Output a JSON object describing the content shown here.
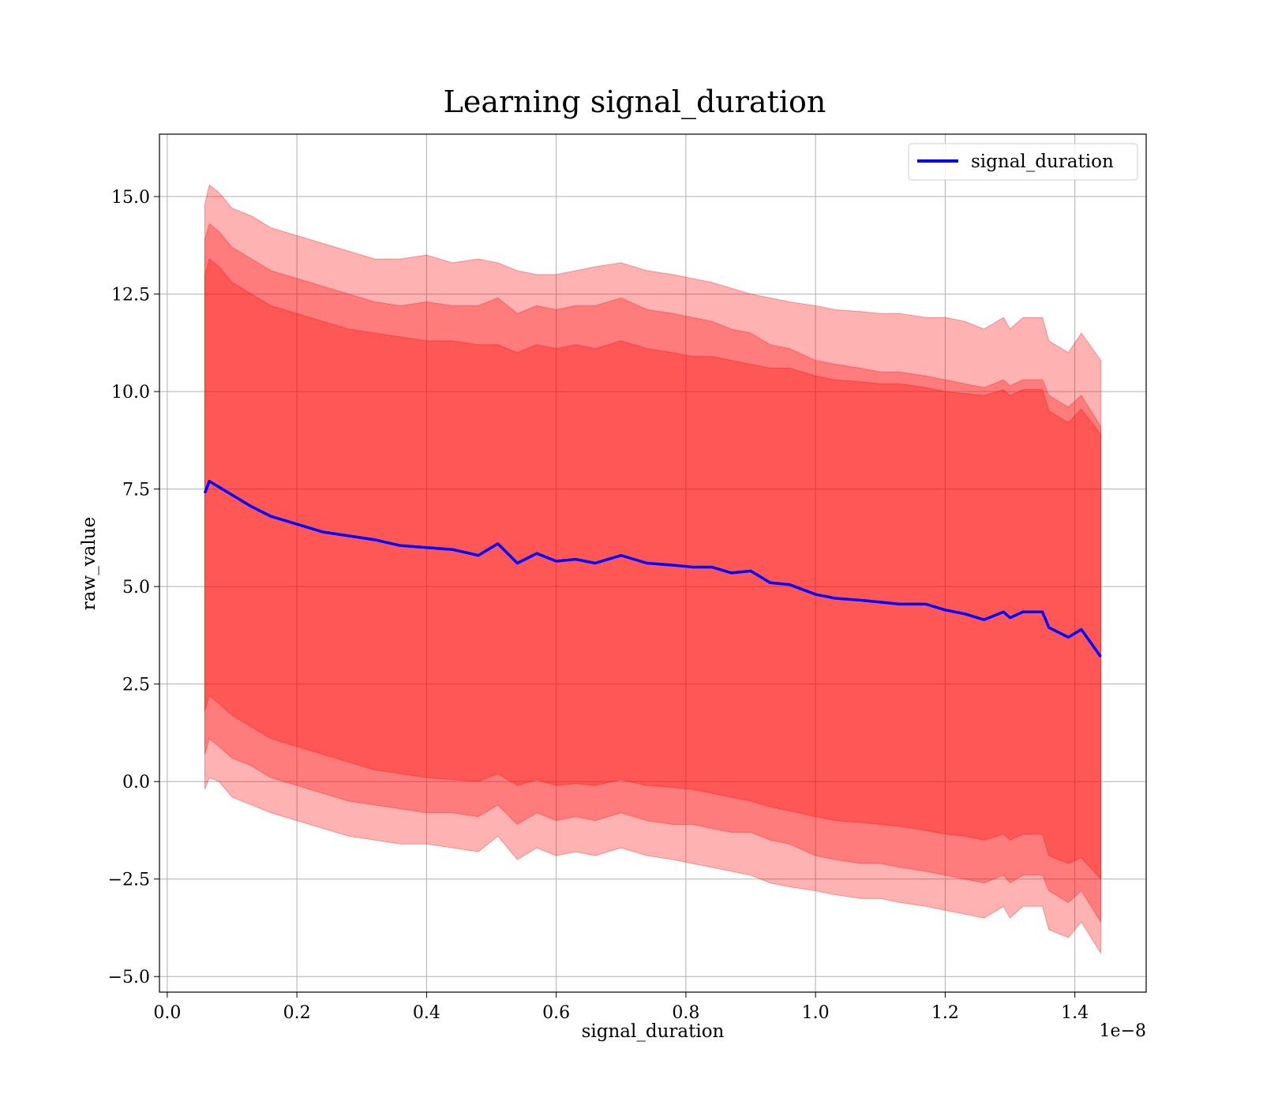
{
  "chart_data": {
    "type": "line",
    "title": "Learning signal_duration",
    "xlabel": "signal_duration",
    "ylabel": "raw_value",
    "x_offset_text": "1e−8",
    "xlim": [
      -0.012,
      1.51
    ],
    "ylim": [
      -5.4,
      16.6
    ],
    "grid": true,
    "legend": {
      "placement": "top-right",
      "entries": [
        "signal_duration"
      ]
    },
    "x_ticks": [
      0.0,
      0.2,
      0.4,
      0.6,
      0.8,
      1.0,
      1.2,
      1.4
    ],
    "x_tick_labels": [
      "0.0",
      "0.2",
      "0.4",
      "0.6",
      "0.8",
      "1.0",
      "1.2",
      "1.4"
    ],
    "y_ticks": [
      -5.0,
      -2.5,
      0.0,
      2.5,
      5.0,
      7.5,
      10.0,
      12.5,
      15.0
    ],
    "y_tick_labels": [
      "−5.0",
      "−2.5",
      "0.0",
      "2.5",
      "5.0",
      "7.5",
      "10.0",
      "12.5",
      "15.0"
    ],
    "colors": {
      "line": "#0000ff",
      "band": "#ff0000"
    },
    "series": [
      {
        "name": "signal_duration",
        "x": [
          0.058,
          0.065,
          0.08,
          0.1,
          0.13,
          0.16,
          0.2,
          0.24,
          0.28,
          0.32,
          0.36,
          0.4,
          0.44,
          0.48,
          0.51,
          0.54,
          0.57,
          0.6,
          0.63,
          0.66,
          0.7,
          0.74,
          0.78,
          0.81,
          0.84,
          0.87,
          0.9,
          0.93,
          0.96,
          1.0,
          1.03,
          1.07,
          1.1,
          1.13,
          1.17,
          1.2,
          1.23,
          1.26,
          1.29,
          1.3,
          1.32,
          1.35,
          1.36,
          1.39,
          1.41,
          1.44
        ],
        "y": [
          7.4,
          7.7,
          7.55,
          7.35,
          7.05,
          6.8,
          6.6,
          6.4,
          6.3,
          6.2,
          6.05,
          6.0,
          5.95,
          5.8,
          6.1,
          5.6,
          5.85,
          5.65,
          5.7,
          5.6,
          5.8,
          5.6,
          5.55,
          5.5,
          5.5,
          5.35,
          5.4,
          5.1,
          5.05,
          4.8,
          4.7,
          4.65,
          4.6,
          4.55,
          4.55,
          4.4,
          4.3,
          4.15,
          4.35,
          4.2,
          4.35,
          4.35,
          3.95,
          3.7,
          3.9,
          3.2
        ],
        "bands": [
          {
            "upper": [
              14.8,
              15.3,
              15.1,
              14.7,
              14.5,
              14.2,
              14.0,
              13.8,
              13.6,
              13.4,
              13.4,
              13.5,
              13.3,
              13.4,
              13.3,
              13.1,
              13.0,
              13.0,
              13.1,
              13.2,
              13.3,
              13.1,
              13.0,
              12.9,
              12.8,
              12.65,
              12.5,
              12.4,
              12.3,
              12.2,
              12.1,
              12.05,
              12.0,
              12.0,
              11.9,
              11.9,
              11.8,
              11.6,
              11.9,
              11.6,
              11.9,
              11.9,
              11.3,
              11.0,
              11.5,
              10.8
            ],
            "lower": [
              -0.2,
              0.1,
              0.0,
              -0.4,
              -0.6,
              -0.8,
              -1.0,
              -1.2,
              -1.4,
              -1.5,
              -1.6,
              -1.6,
              -1.7,
              -1.8,
              -1.4,
              -2.0,
              -1.7,
              -1.9,
              -1.8,
              -1.9,
              -1.7,
              -1.9,
              -2.0,
              -2.1,
              -2.2,
              -2.3,
              -2.4,
              -2.6,
              -2.7,
              -2.8,
              -2.9,
              -3.0,
              -3.0,
              -3.1,
              -3.2,
              -3.3,
              -3.4,
              -3.5,
              -3.2,
              -3.5,
              -3.2,
              -3.2,
              -3.8,
              -4.0,
              -3.6,
              -4.4
            ]
          },
          {
            "upper": [
              13.9,
              14.3,
              14.1,
              13.7,
              13.4,
              13.1,
              12.9,
              12.7,
              12.5,
              12.3,
              12.2,
              12.3,
              12.2,
              12.2,
              12.4,
              12.0,
              12.2,
              12.1,
              12.2,
              12.2,
              12.4,
              12.1,
              12.0,
              11.9,
              11.8,
              11.6,
              11.5,
              11.2,
              11.1,
              10.8,
              10.7,
              10.6,
              10.5,
              10.5,
              10.4,
              10.3,
              10.2,
              10.1,
              10.3,
              10.15,
              10.3,
              10.3,
              9.9,
              9.6,
              9.9,
              9.1
            ],
            "lower": [
              0.7,
              1.1,
              0.9,
              0.6,
              0.4,
              0.1,
              -0.1,
              -0.3,
              -0.5,
              -0.6,
              -0.7,
              -0.8,
              -0.8,
              -0.9,
              -0.6,
              -1.1,
              -0.8,
              -1.0,
              -0.9,
              -1.0,
              -0.8,
              -1.0,
              -1.1,
              -1.1,
              -1.2,
              -1.3,
              -1.3,
              -1.5,
              -1.6,
              -1.9,
              -2.0,
              -2.1,
              -2.1,
              -2.2,
              -2.3,
              -2.4,
              -2.5,
              -2.6,
              -2.4,
              -2.6,
              -2.4,
              -2.4,
              -2.8,
              -3.1,
              -2.8,
              -3.6
            ]
          },
          {
            "upper": [
              13.0,
              13.4,
              13.2,
              12.8,
              12.5,
              12.2,
              12.0,
              11.8,
              11.6,
              11.5,
              11.4,
              11.3,
              11.3,
              11.2,
              11.2,
              11.0,
              11.2,
              11.1,
              11.2,
              11.1,
              11.3,
              11.1,
              11.0,
              10.9,
              10.9,
              10.8,
              10.7,
              10.6,
              10.6,
              10.4,
              10.3,
              10.25,
              10.2,
              10.2,
              10.1,
              10.0,
              9.95,
              9.9,
              10.05,
              9.9,
              10.05,
              10.05,
              9.5,
              9.2,
              9.55,
              8.9
            ],
            "lower": [
              1.8,
              2.2,
              2.0,
              1.7,
              1.4,
              1.1,
              0.9,
              0.7,
              0.5,
              0.3,
              0.2,
              0.1,
              0.05,
              0.0,
              0.2,
              -0.1,
              0.05,
              -0.1,
              -0.05,
              -0.1,
              0.05,
              -0.1,
              -0.15,
              -0.2,
              -0.3,
              -0.4,
              -0.5,
              -0.65,
              -0.75,
              -0.9,
              -1.0,
              -1.05,
              -1.1,
              -1.15,
              -1.25,
              -1.35,
              -1.4,
              -1.5,
              -1.35,
              -1.5,
              -1.35,
              -1.35,
              -1.9,
              -2.1,
              -1.95,
              -2.5
            ]
          }
        ]
      }
    ]
  }
}
